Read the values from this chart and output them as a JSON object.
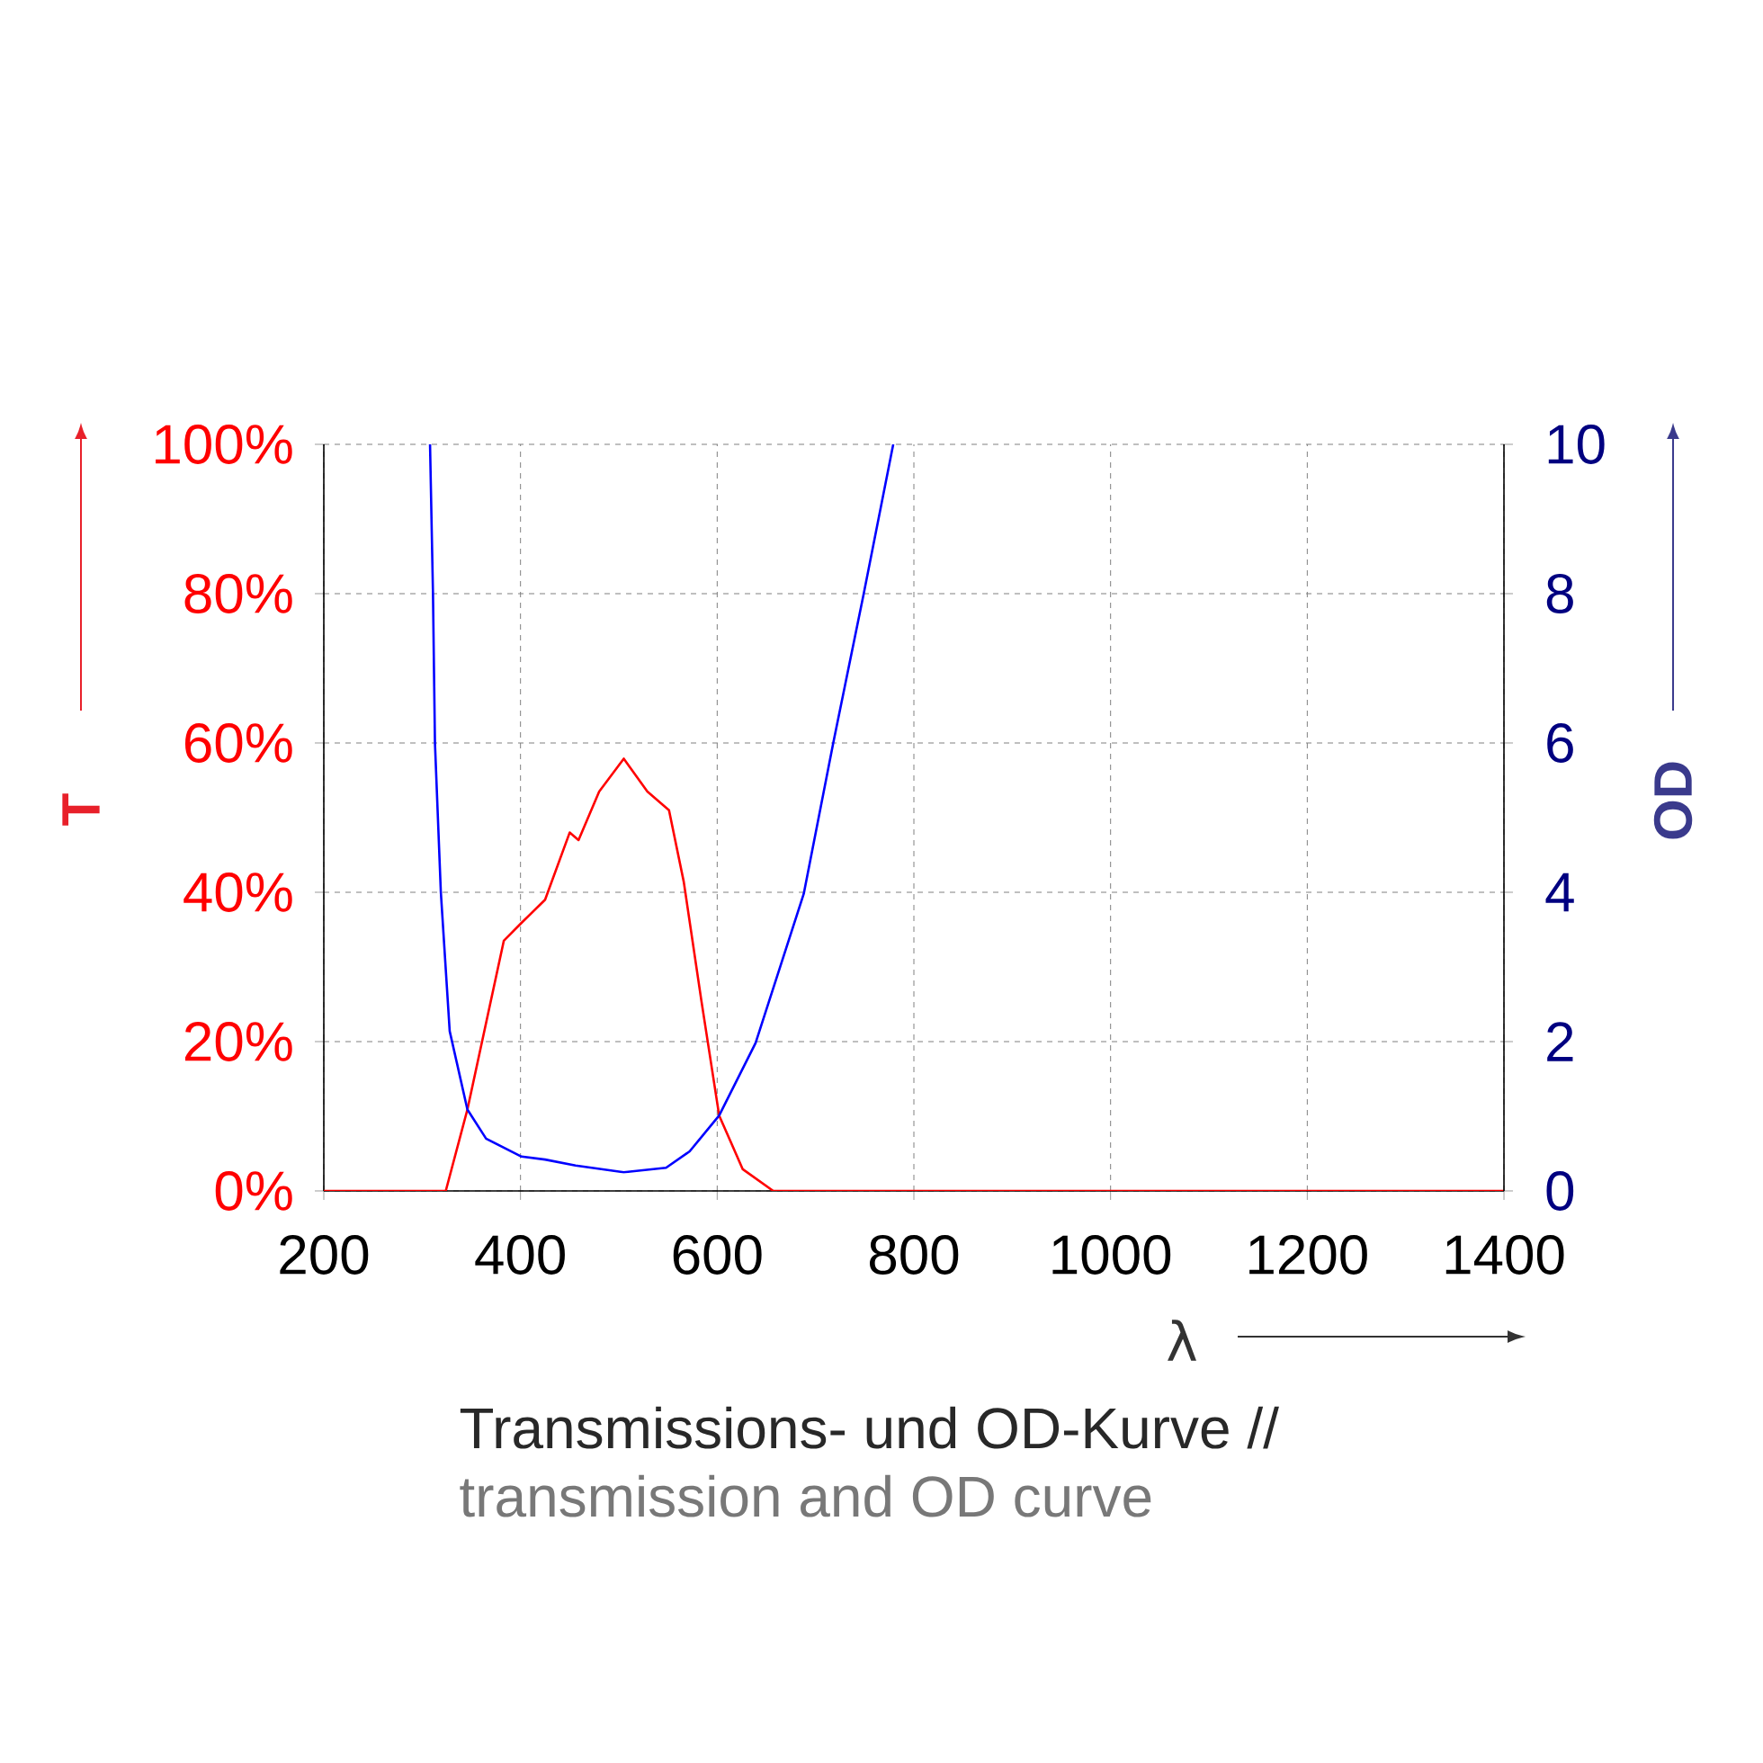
{
  "chart_data": {
    "type": "line",
    "xlabel": "λ",
    "ylabel": "T",
    "y2label": "OD",
    "xlim": [
      200,
      1400
    ],
    "xticks": [
      200,
      400,
      600,
      800,
      1000,
      1200,
      1400
    ],
    "ylim": [
      0,
      100
    ],
    "yticks": [
      {
        "value": 0,
        "label": "0%"
      },
      {
        "value": 20,
        "label": "20%"
      },
      {
        "value": 40,
        "label": "40%"
      },
      {
        "value": 60,
        "label": "60%"
      },
      {
        "value": 80,
        "label": "80%"
      },
      {
        "value": 100,
        "label": "100%"
      }
    ],
    "y2lim": [
      0,
      10
    ],
    "y2ticks": [
      0,
      2,
      4,
      6,
      8,
      10
    ],
    "grid": true,
    "marker": "none",
    "line_style": "solid",
    "series": [
      {
        "color": "#ff0000",
        "x": [
          200,
          324,
          346,
          383,
          401,
          425,
          450,
          459,
          480,
          505,
          529,
          551,
          566,
          584,
          602,
          626,
          657,
          800,
          1000,
          1200,
          1400
        ],
        "values": [
          0,
          0,
          10.9,
          33.5,
          35.9,
          39,
          48,
          47,
          53.5,
          57.9,
          53.5,
          51,
          41.4,
          25.4,
          10.1,
          2.9,
          0,
          0,
          0,
          0,
          0
        ]
      },
      {
        "color": "#0000ff",
        "axis": "y2",
        "x": [
          308,
          311,
          313,
          319,
          328,
          346,
          365,
          401,
          425,
          456,
          505,
          548,
          572,
          602,
          639,
          688,
          718,
          749,
          779
        ],
        "values": [
          10,
          8,
          6,
          4,
          2.14,
          1.09,
          0.7,
          0.46,
          0.42,
          0.34,
          0.25,
          0.31,
          0.53,
          1.01,
          1.98,
          3.98,
          6,
          8,
          10
        ]
      }
    ],
    "annotations": [
      "Transmissions- und OD-Kurve //",
      "transmission and OD curve"
    ]
  }
}
